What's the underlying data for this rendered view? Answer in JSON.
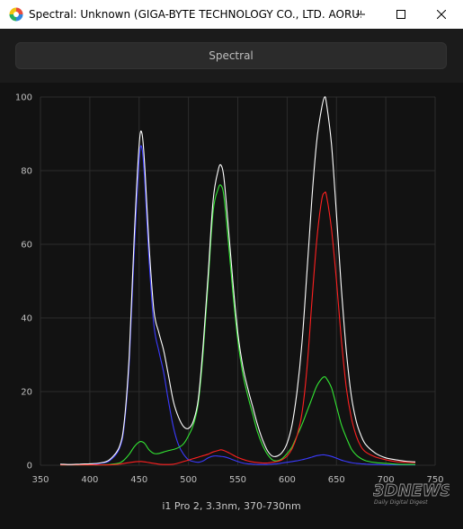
{
  "window": {
    "title": "Spectral: Unknown (GIGA-BYTE TECHNOLOGY CO., LTD. AORUS..."
  },
  "tab": {
    "label": "Spectral"
  },
  "caption": "i1 Pro 2, 3.3nm, 370-730nm",
  "watermark": {
    "brand": "3DNEWS",
    "tagline": "Daily Digital Digest"
  },
  "colors": {
    "background": "#121212",
    "grid": "#2c2c2c",
    "total": "#ffffff",
    "red": "#ff2020",
    "green": "#33e633",
    "blue": "#3b3bff"
  },
  "chart_data": {
    "type": "line",
    "xlim": [
      350,
      750
    ],
    "ylim": [
      0,
      100
    ],
    "xticks": [
      350,
      400,
      450,
      500,
      550,
      600,
      650,
      700,
      750
    ],
    "yticks": [
      0,
      20,
      40,
      60,
      80,
      100
    ],
    "grid": true,
    "x": [
      370,
      380,
      390,
      400,
      410,
      420,
      430,
      435,
      440,
      445,
      450,
      453,
      456,
      460,
      465,
      470,
      475,
      480,
      485,
      490,
      495,
      500,
      505,
      510,
      515,
      520,
      525,
      530,
      533,
      536,
      540,
      545,
      550,
      555,
      560,
      565,
      570,
      575,
      580,
      585,
      590,
      595,
      600,
      605,
      610,
      615,
      620,
      625,
      630,
      635,
      638,
      640,
      645,
      650,
      655,
      660,
      665,
      670,
      675,
      680,
      690,
      700,
      710,
      720,
      730
    ],
    "series": [
      {
        "color": "total",
        "values": [
          0.3,
          0.2,
          0.3,
          0.4,
          0.6,
          1.5,
          5,
          12,
          30,
          62,
          87,
          90,
          80,
          60,
          42,
          36,
          31,
          24,
          17,
          13,
          10.5,
          10,
          12,
          18,
          33,
          52,
          72,
          80,
          81.5,
          78,
          66,
          50,
          36,
          27,
          21,
          16,
          11,
          7,
          4,
          2.5,
          2.5,
          3.5,
          6,
          11,
          20,
          33,
          52,
          72,
          88,
          97,
          100,
          98,
          87,
          68,
          48,
          31,
          19,
          12,
          8,
          5.5,
          3.2,
          2,
          1.5,
          1.1,
          0.9
        ]
      },
      {
        "color": "blue",
        "values": [
          0.2,
          0.1,
          0.2,
          0.3,
          0.5,
          1.2,
          4.5,
          11,
          28,
          58,
          83,
          86,
          76,
          56,
          38,
          31,
          25,
          17,
          10,
          5.5,
          3,
          1.5,
          1,
          0.8,
          1.2,
          2,
          2.5,
          2.5,
          2.4,
          2.3,
          2,
          1.5,
          1,
          0.6,
          0.4,
          0.3,
          0.2,
          0.2,
          0.2,
          0.3,
          0.4,
          0.6,
          0.8,
          1,
          1.2,
          1.5,
          1.8,
          2.2,
          2.6,
          2.8,
          2.8,
          2.7,
          2.4,
          1.9,
          1.4,
          1,
          0.7,
          0.5,
          0.4,
          0.3,
          0.2,
          0.1,
          0.1,
          0.1,
          0.1
        ]
      },
      {
        "color": "green",
        "values": [
          0.1,
          0.1,
          0.1,
          0.1,
          0.1,
          0.2,
          0.6,
          1.5,
          3,
          5,
          6.3,
          6.4,
          5.8,
          4.2,
          3.2,
          3.2,
          3.6,
          4,
          4.3,
          4.8,
          5.8,
          8,
          11,
          17,
          31,
          50,
          69,
          75,
          76,
          73,
          62,
          47,
          34,
          25,
          19,
          14,
          9,
          5.5,
          3,
          1.5,
          1.2,
          1.8,
          3.2,
          5,
          8,
          11,
          14.5,
          18,
          21.5,
          23.5,
          24,
          23.5,
          21,
          16,
          11,
          7.5,
          4.5,
          2.8,
          1.8,
          1.2,
          0.7,
          0.5,
          0.3,
          0.2,
          0.2
        ]
      },
      {
        "color": "red",
        "values": [
          0.1,
          0.1,
          0.1,
          0.1,
          0.1,
          0.1,
          0.3,
          0.5,
          0.7,
          0.9,
          1,
          1,
          0.9,
          0.7,
          0.5,
          0.3,
          0.2,
          0.2,
          0.3,
          0.6,
          1,
          1.4,
          1.8,
          2.2,
          2.6,
          3,
          3.6,
          4,
          4.2,
          4,
          3.5,
          2.8,
          2.1,
          1.6,
          1.2,
          0.9,
          0.7,
          0.6,
          0.6,
          0.8,
          1,
          1.5,
          2.5,
          4.5,
          8,
          14,
          26,
          44,
          61,
          72,
          74,
          73,
          64,
          50,
          34,
          21,
          13,
          8,
          5,
          3.5,
          2.2,
          1.5,
          1,
          0.8,
          0.7
        ]
      }
    ]
  }
}
